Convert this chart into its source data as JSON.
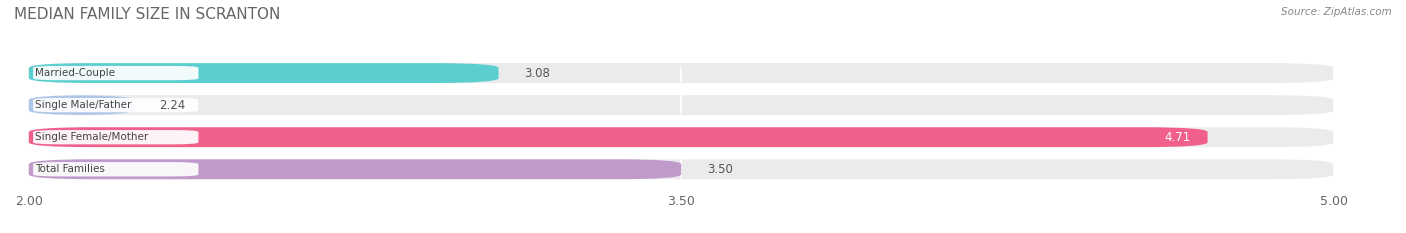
{
  "title": "MEDIAN FAMILY SIZE IN SCRANTON",
  "source": "Source: ZipAtlas.com",
  "categories": [
    "Married-Couple",
    "Single Male/Father",
    "Single Female/Mother",
    "Total Families"
  ],
  "values": [
    3.08,
    2.24,
    4.71,
    3.5
  ],
  "bar_colors": [
    "#5bcfcf",
    "#aec6e8",
    "#f0608a",
    "#c09aca"
  ],
  "background_color": "#ffffff",
  "bar_bg_color": "#ebebeb",
  "xmin": 2.0,
  "xmax": 5.0,
  "xticks": [
    2.0,
    3.5,
    5.0
  ],
  "xlabel_fontsize": 9,
  "title_fontsize": 11,
  "value_label_fontsize": 8.5,
  "cat_label_fontsize": 7.5,
  "label_box_color": "#ffffff"
}
